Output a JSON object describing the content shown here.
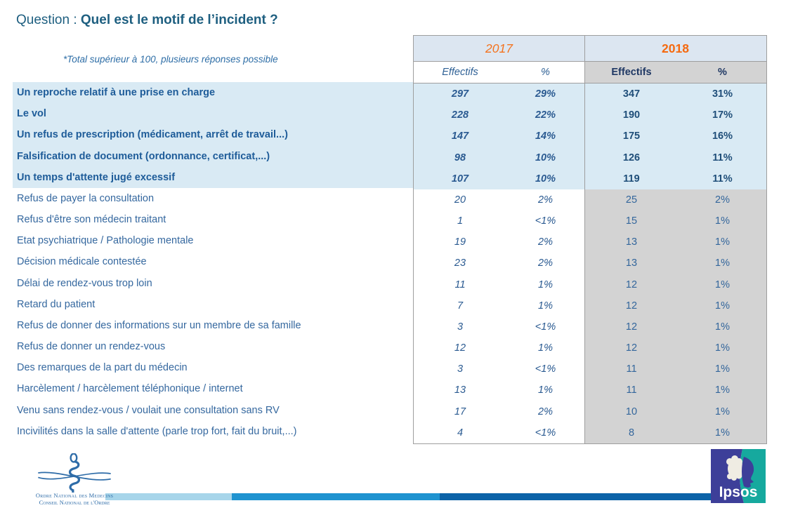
{
  "title": {
    "prefix": "Question : ",
    "question": "Quel est le motif de l’incident ?"
  },
  "note": "*Total supérieur à 100, plusieurs réponses possible",
  "chart_data": {
    "type": "table",
    "title": "Quel est le motif de l’incident ?",
    "footnote": "*Total supérieur à 100, plusieurs réponses possible",
    "column_groups": [
      "2017",
      "2018"
    ],
    "columns": [
      "Effectifs",
      "%",
      "Effectifs",
      "%"
    ],
    "highlighted_row_count": 5,
    "rows": [
      {
        "label": "Un reproche relatif à une prise en charge",
        "values": [
          "297",
          "29%",
          "347",
          "31%"
        ],
        "highlight": true
      },
      {
        "label": "Le vol",
        "values": [
          "228",
          "22%",
          "190",
          "17%"
        ],
        "highlight": true
      },
      {
        "label": "Un refus de prescription (médicament, arrêt de travail...)",
        "values": [
          "147",
          "14%",
          "175",
          "16%"
        ],
        "highlight": true
      },
      {
        "label": "Falsification de document (ordonnance, certificat,...)",
        "values": [
          "98",
          "10%",
          "126",
          "11%"
        ],
        "highlight": true
      },
      {
        "label": "Un temps d'attente jugé excessif",
        "values": [
          "107",
          "10%",
          "119",
          "11%"
        ],
        "highlight": true
      },
      {
        "label": "Refus de payer la consultation",
        "values": [
          "20",
          "2%",
          "25",
          "2%"
        ],
        "highlight": false
      },
      {
        "label": "Refus d'être son médecin traitant",
        "values": [
          "1",
          "<1%",
          "15",
          "1%"
        ],
        "highlight": false
      },
      {
        "label": "Etat psychiatrique / Pathologie mentale",
        "values": [
          "19",
          "2%",
          "13",
          "1%"
        ],
        "highlight": false
      },
      {
        "label": "Décision médicale contestée",
        "values": [
          "23",
          "2%",
          "13",
          "1%"
        ],
        "highlight": false
      },
      {
        "label": "Délai de rendez-vous trop loin",
        "values": [
          "11",
          "1%",
          "12",
          "1%"
        ],
        "highlight": false
      },
      {
        "label": "Retard du patient",
        "values": [
          "7",
          "1%",
          "12",
          "1%"
        ],
        "highlight": false
      },
      {
        "label": "Refus de donner des informations sur un membre de sa famille",
        "values": [
          "3",
          "<1%",
          "12",
          "1%"
        ],
        "highlight": false
      },
      {
        "label": "Refus de donner un rendez-vous",
        "values": [
          "12",
          "1%",
          "12",
          "1%"
        ],
        "highlight": false
      },
      {
        "label": "Des remarques de la part du médecin",
        "values": [
          "3",
          "<1%",
          "11",
          "1%"
        ],
        "highlight": false
      },
      {
        "label": "Harcèlement / harcèlement téléphonique / internet",
        "values": [
          "13",
          "1%",
          "11",
          "1%"
        ],
        "highlight": false
      },
      {
        "label": "Venu sans rendez-vous / voulait une consultation sans RV",
        "values": [
          "17",
          "2%",
          "10",
          "1%"
        ],
        "highlight": false
      },
      {
        "label": "Incivilités dans la salle d'attente (parle trop fort, fait du bruit,...)",
        "values": [
          "4",
          "<1%",
          "8",
          "1%"
        ],
        "highlight": false
      }
    ]
  },
  "footer": {
    "onm_logo_line1": "Ordre National des Medecins",
    "onm_logo_line2": "Conseil National de l'Ordre",
    "ipsos_logo_text": "Ipsos"
  },
  "colors": {
    "accent_orange_2017": "#F4731E",
    "accent_orange_2018": "#F56A10",
    "title_blue": "#1E5F80",
    "label_blue": "#35689F",
    "label_blue_bold": "#1E5C99",
    "row_highlight_blue": "#D9EAF4",
    "header_blue": "#DCE6F1",
    "column_2018_gray": "#D3D3D3",
    "border_gray": "#9E9E9E",
    "bar_light_blue": "#A7D5EA",
    "bar_medium_blue": "#1F93D0",
    "bar_dark_blue": "#0C63A8",
    "ipsos_indigo": "#3D3F99",
    "ipsos_teal": "#16A99E"
  }
}
